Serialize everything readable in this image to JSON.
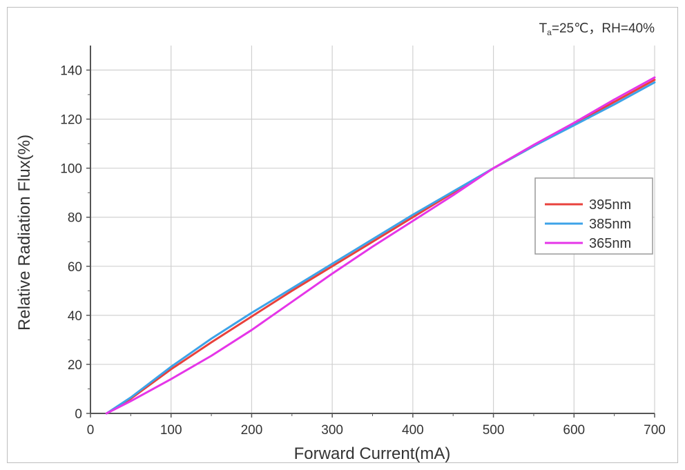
{
  "chart_data": {
    "type": "line",
    "condition_text": {
      "ta_base": "T",
      "ta_sub": "a",
      "ta_rest": "=25℃，RH=40%"
    },
    "xlabel": "Forward Current(mA)",
    "ylabel": "Relative Radiation Flux(%)",
    "xlim": [
      0,
      700
    ],
    "ylim": [
      0,
      150
    ],
    "xticks": [
      "0",
      "100",
      "200",
      "300",
      "400",
      "500",
      "600",
      "700"
    ],
    "yticks": [
      "0",
      "20",
      "40",
      "60",
      "80",
      "100",
      "120",
      "140"
    ],
    "grid": true,
    "legend_position": "right",
    "series": [
      {
        "name": "395nm",
        "color": "#e8413c",
        "points": [
          [
            20,
            0
          ],
          [
            50,
            6
          ],
          [
            100,
            18
          ],
          [
            150,
            29
          ],
          [
            200,
            39.5
          ],
          [
            250,
            50
          ],
          [
            300,
            60
          ],
          [
            350,
            70
          ],
          [
            400,
            80
          ],
          [
            450,
            90
          ],
          [
            500,
            100
          ],
          [
            550,
            109
          ],
          [
            600,
            118
          ],
          [
            650,
            127
          ],
          [
            700,
            136
          ]
        ]
      },
      {
        "name": "385nm",
        "color": "#3da3e8",
        "points": [
          [
            20,
            0
          ],
          [
            50,
            6.5
          ],
          [
            100,
            19
          ],
          [
            150,
            30.5
          ],
          [
            200,
            41
          ],
          [
            250,
            51
          ],
          [
            300,
            61
          ],
          [
            350,
            71
          ],
          [
            400,
            81
          ],
          [
            450,
            90.5
          ],
          [
            500,
            100
          ],
          [
            550,
            109
          ],
          [
            600,
            117.5
          ],
          [
            650,
            126
          ],
          [
            700,
            135
          ]
        ]
      },
      {
        "name": "365nm",
        "color": "#e535e8",
        "points": [
          [
            20,
            0
          ],
          [
            50,
            5
          ],
          [
            100,
            14
          ],
          [
            150,
            23.5
          ],
          [
            200,
            34
          ],
          [
            250,
            45.5
          ],
          [
            300,
            57
          ],
          [
            350,
            68
          ],
          [
            400,
            78.5
          ],
          [
            450,
            89
          ],
          [
            500,
            100
          ],
          [
            550,
            109.5
          ],
          [
            600,
            118.5
          ],
          [
            650,
            128
          ],
          [
            700,
            137
          ]
        ]
      }
    ]
  }
}
